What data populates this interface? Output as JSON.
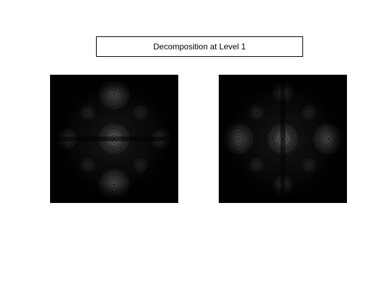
{
  "figure": {
    "title": "Decomposition at Level 1",
    "colors": {
      "background": "#ffffff",
      "panel_background": "#000000",
      "fringe": "#9a9a9a",
      "title_border": "#000000"
    }
  },
  "panels": [
    {
      "id": "horizontal-detail",
      "pattern": "concentric ring fringes concentrated along the vertical axis, dark horizontal band at center"
    },
    {
      "id": "vertical-detail",
      "pattern": "concentric ring fringes concentrated along the horizontal axis, dark vertical band at center"
    }
  ]
}
